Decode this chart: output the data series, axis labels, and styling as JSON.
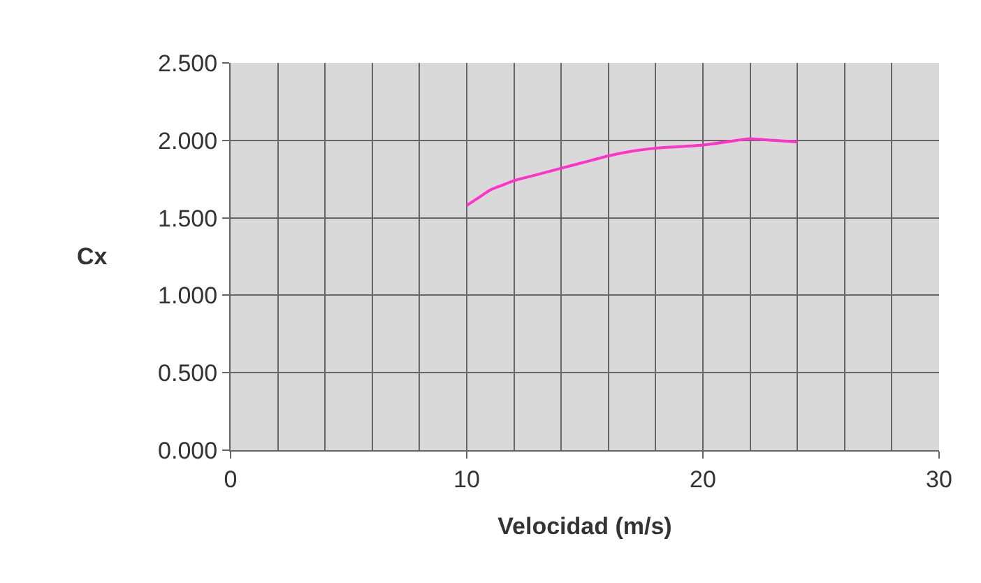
{
  "chart_data": {
    "type": "line",
    "xlabel": "Velocidad (m/s)",
    "ylabel": "Cx",
    "x": [
      10,
      10.5,
      11,
      11.5,
      12,
      13,
      14,
      15,
      16,
      17,
      18,
      19,
      20,
      21,
      22,
      23,
      24
    ],
    "series": [
      {
        "color": "#ff33cc",
        "values": [
          1.58,
          1.63,
          1.68,
          1.71,
          1.74,
          1.78,
          1.82,
          1.86,
          1.9,
          1.93,
          1.95,
          1.96,
          1.97,
          1.99,
          2.01,
          2.0,
          1.99
        ]
      }
    ],
    "xlim": [
      0,
      30
    ],
    "xticks": [
      0,
      10,
      20,
      30
    ],
    "ylim": [
      0,
      2.5
    ],
    "yticks": [
      {
        "value": 0,
        "label": "0.000"
      },
      {
        "value": 0.5,
        "label": "0.500"
      },
      {
        "value": 1,
        "label": "1.000"
      },
      {
        "value": 1.5,
        "label": "1.500"
      },
      {
        "value": 2,
        "label": "2.000"
      },
      {
        "value": 2.5,
        "label": "2.500"
      }
    ],
    "grid": true,
    "marker": "none",
    "line_style": "solid"
  }
}
